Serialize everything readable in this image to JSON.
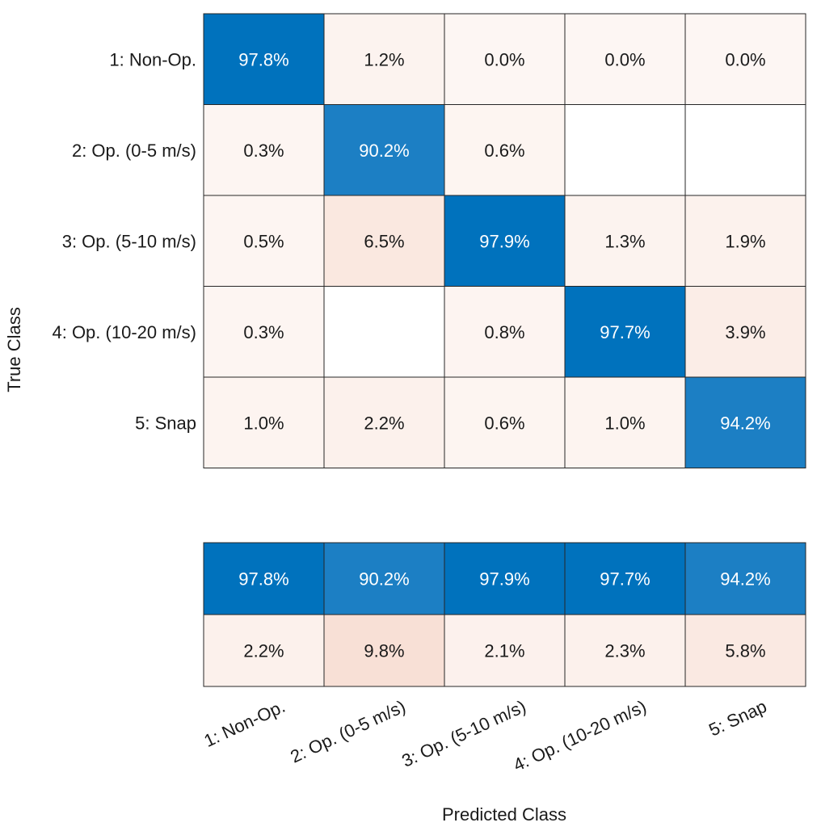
{
  "chart_data": {
    "type": "heatmap",
    "title": "",
    "xlabel": "Predicted Class",
    "ylabel": "True Class",
    "classes": [
      "1: Non-Op.",
      "2: Op. (0-5 m/s)",
      "3: Op. (5-10 m/s)",
      "4: Op. (10-20 m/s)",
      "5: Snap"
    ],
    "matrix": [
      [
        "97.8%",
        "1.2%",
        "0.0%",
        "0.0%",
        "0.0%"
      ],
      [
        "0.3%",
        "90.2%",
        "0.6%",
        "",
        ""
      ],
      [
        "0.5%",
        "6.5%",
        "97.9%",
        "1.3%",
        "1.9%"
      ],
      [
        "0.3%",
        "",
        "0.8%",
        "97.7%",
        "3.9%"
      ],
      [
        "1.0%",
        "2.2%",
        "0.6%",
        "1.0%",
        "94.2%"
      ]
    ],
    "matrix_values": [
      [
        97.8,
        1.2,
        0.0,
        0.0,
        0.0
      ],
      [
        0.3,
        90.2,
        0.6,
        null,
        null
      ],
      [
        0.5,
        6.5,
        97.9,
        1.3,
        1.9
      ],
      [
        0.3,
        null,
        0.8,
        97.7,
        3.9
      ],
      [
        1.0,
        2.2,
        0.6,
        1.0,
        94.2
      ]
    ],
    "summary": [
      [
        "97.8%",
        "90.2%",
        "97.9%",
        "97.7%",
        "94.2%"
      ],
      [
        "2.2%",
        "9.8%",
        "2.1%",
        "2.3%",
        "5.8%"
      ]
    ],
    "summary_values": [
      [
        97.8,
        90.2,
        97.9,
        97.7,
        94.2
      ],
      [
        2.2,
        9.8,
        2.1,
        2.3,
        5.8
      ]
    ],
    "colors": {
      "correct_high": "#0072bd",
      "correct_low": "#1c7fc4",
      "error_base": "#fdf6f3",
      "error_strong": "#f8e0d5",
      "empty": "#ffffff",
      "grid_line": "#262626",
      "text_dark": "#1a1a1a",
      "text_light": "#ffffff"
    }
  }
}
